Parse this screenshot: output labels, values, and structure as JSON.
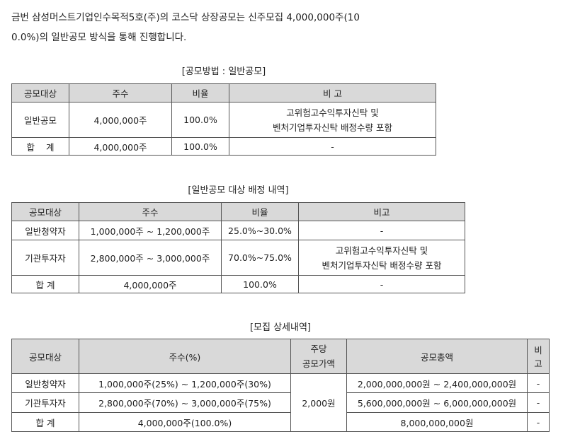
{
  "intro": {
    "line1": "금번 삼성머스트기업인수목적5호(주)의 코스닥 상장공모는 신주모집 4,000,000주(10",
    "line2": "0.0%)의 일반공모 방식을 통해 진행합니다."
  },
  "table1": {
    "caption": "[공모방법 : 일반공모]",
    "headers": [
      "공모대상",
      "주수",
      "비율",
      "비 고"
    ],
    "rows": [
      {
        "target": "일반공모",
        "shares": "4,000,000주",
        "ratio": "100.0%",
        "note1": "고위험고수익투자신탁 및",
        "note2": "벤처기업투자신탁 배정수량 포함"
      },
      {
        "target": "합    계",
        "shares": "4,000,000주",
        "ratio": "100.0%",
        "note1": "-"
      }
    ]
  },
  "table2": {
    "caption": "[일반공모 대상 배정 내역]",
    "headers": [
      "공모대상",
      "주수",
      "비율",
      "비고"
    ],
    "rows": [
      {
        "target": "일반청약자",
        "shares": "1,000,000주 ~ 1,200,000주",
        "ratio": "25.0%~30.0%",
        "note1": "-"
      },
      {
        "target": "기관투자자",
        "shares": "2,800,000주 ~ 3,000,000주",
        "ratio": "70.0%~75.0%",
        "note1": "고위험고수익투자신탁 및",
        "note2": "벤처기업투자신탁 배정수량 포함"
      },
      {
        "target": "합 계",
        "shares": "4,000,000주",
        "ratio": "100.0%",
        "note1": "-"
      }
    ]
  },
  "table3": {
    "caption": "[모집 상세내역]",
    "headers": {
      "target": "공모대상",
      "shares": "주수(%)",
      "price1": "주당",
      "price2": "공모가액",
      "total": "공모총액",
      "note": "비고"
    },
    "price": "2,000원",
    "rows": [
      {
        "target": "일반청약자",
        "shares": "1,000,000주(25%) ~ 1,200,000주(30%)",
        "total": "2,000,000,000원 ~ 2,400,000,000원",
        "note": "-"
      },
      {
        "target": "기관투자자",
        "shares": "2,800,000주(70%) ~ 3,000,000주(75%)",
        "total": "5,600,000,000원 ~ 6,000,000,000원",
        "note": "-"
      },
      {
        "target": "합 계",
        "shares": "4,000,000주(100.0%)",
        "total": "8,000,000,000원",
        "note": "-"
      }
    ]
  }
}
